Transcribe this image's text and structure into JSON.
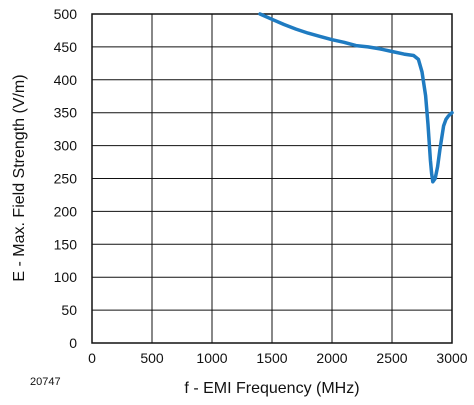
{
  "chart_data": {
    "type": "line",
    "title": "",
    "xlabel": "f - EMI Frequency (MHz)",
    "ylabel": "E - Max. Field Strength (V/m)",
    "xlim": [
      0,
      3000
    ],
    "ylim": [
      0,
      500
    ],
    "x_ticks": [
      0,
      500,
      1000,
      1500,
      2000,
      2500,
      3000
    ],
    "y_ticks": [
      0,
      50,
      100,
      150,
      200,
      250,
      300,
      350,
      400,
      450,
      500
    ],
    "grid": true,
    "legend": "none",
    "line_color": "#1f7bc1",
    "series": [
      {
        "x": [
          1400,
          1500,
          1600,
          1700,
          1800,
          1900,
          2000,
          2100,
          2200,
          2300,
          2400,
          2500,
          2600,
          2680,
          2720,
          2750,
          2780,
          2800,
          2810,
          2820,
          2830,
          2840,
          2860,
          2880,
          2900,
          2930,
          2950,
          2970,
          3000
        ],
        "y": [
          500,
          492,
          484,
          477,
          471,
          466,
          461,
          457,
          452,
          450,
          447,
          443,
          439,
          437,
          431,
          412,
          376,
          332,
          305,
          278,
          258,
          245,
          250,
          268,
          295,
          330,
          340,
          345,
          350
        ]
      }
    ]
  },
  "figure_code": "20747"
}
